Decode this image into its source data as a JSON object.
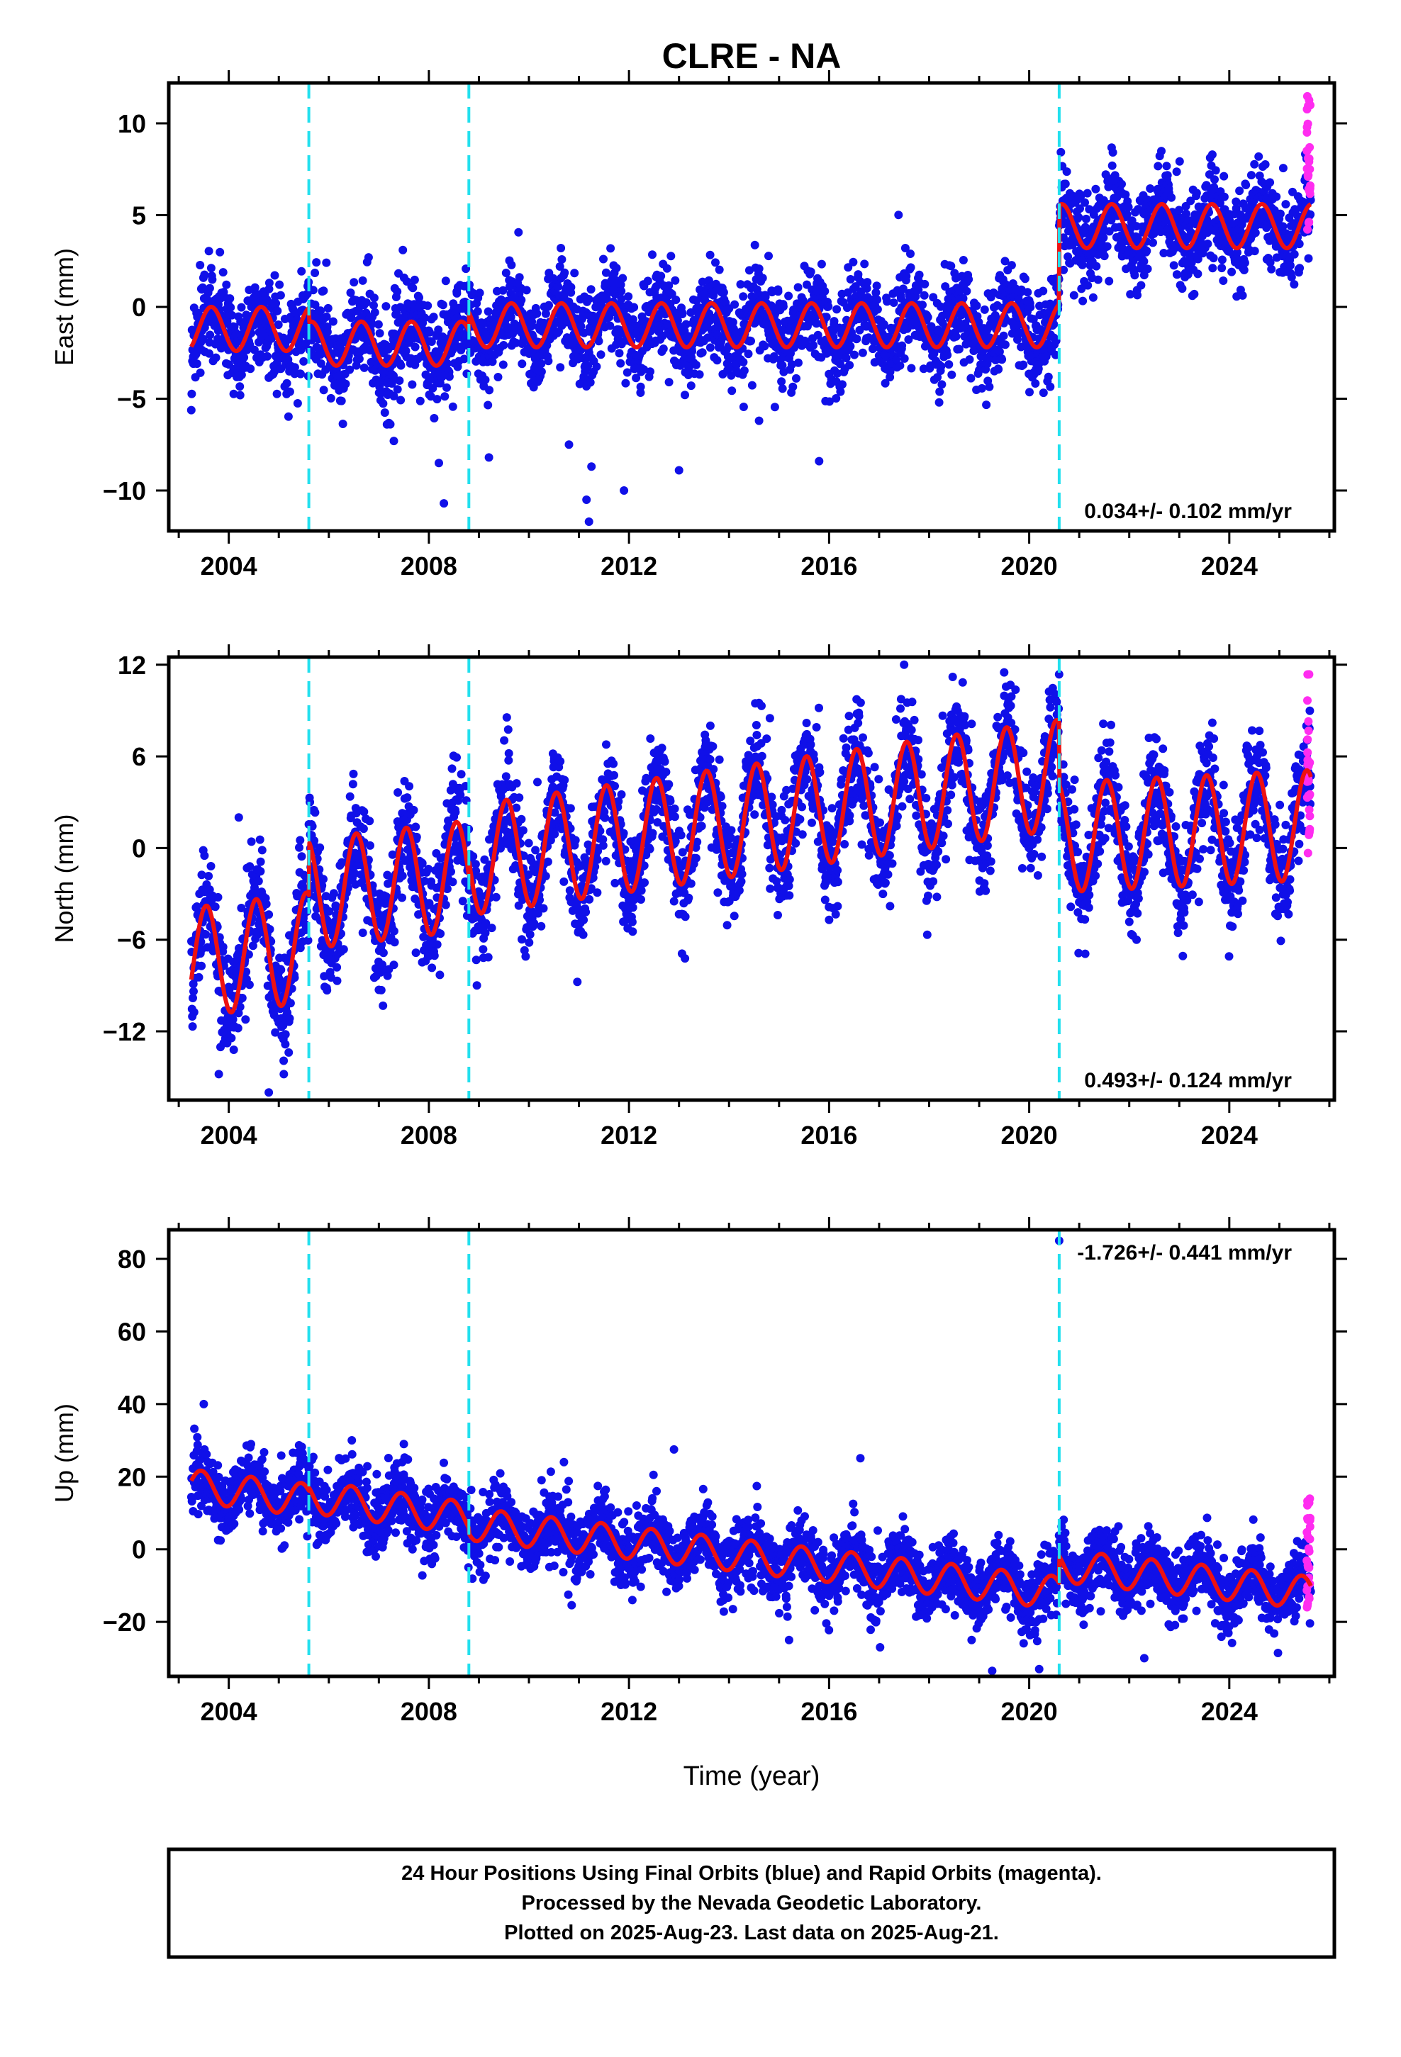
{
  "title": "CLRE - NA",
  "xlabel": "Time (year)",
  "caption": [
    "24 Hour Positions Using Final Orbits (blue) and Rapid Orbits (magenta).",
    "Processed by the Nevada Geodetic Laboratory.",
    "Plotted on 2025-Aug-23. Last data on 2025-Aug-21."
  ],
  "colors": {
    "final": "#1010e8",
    "rapid": "#ff2cf0",
    "model": "#ee1111",
    "breaks": "#22e0ee",
    "axis": "#000000"
  },
  "chart_data": [
    {
      "type": "scatter",
      "name": "east",
      "ylabel": "East (mm)",
      "xlim": [
        2002.8,
        2026.1
      ],
      "ylim": [
        -12.2,
        12.2
      ],
      "xticks": [
        2004,
        2008,
        2012,
        2016,
        2020,
        2024
      ],
      "yticks": [
        -10,
        -5,
        0,
        5,
        10
      ],
      "ytick_labels": [
        "−10",
        "−5",
        "0",
        "5",
        "10"
      ],
      "breaks": [
        2005.6,
        2008.8,
        2020.6
      ],
      "rate": "0.034+/- 0.102 mm/yr",
      "rate_pos": "bottom-right",
      "data_start": 2003.25,
      "data_end": 2025.63,
      "model": {
        "trend": [
          [
            2003.25,
            -1.2
          ],
          [
            2005.6,
            -1.2
          ],
          [
            2005.6,
            -2.0
          ],
          [
            2008.8,
            -2.0
          ],
          [
            2008.8,
            -1.0
          ],
          [
            2020.6,
            -1.0
          ],
          [
            2020.6,
            4.4
          ],
          [
            2025.63,
            4.4
          ]
        ],
        "annual_amplitude": 1.2,
        "phase_peak": 0.65
      },
      "scatter_sigma": 1.25,
      "rapid": {
        "x": [
          2025.55,
          2025.62
        ],
        "y": [
          4.0,
          11.5
        ]
      },
      "outliers": [
        [
          2008.3,
          -10.7
        ],
        [
          2008.2,
          -8.5
        ],
        [
          2011.2,
          -11.7
        ],
        [
          2011.15,
          -10.5
        ],
        [
          2011.25,
          -8.7
        ],
        [
          2011.9,
          -10.0
        ],
        [
          2013.0,
          -8.9
        ],
        [
          2015.8,
          -8.4
        ],
        [
          2009.2,
          -8.2
        ],
        [
          2007.3,
          -7.3
        ],
        [
          2010.8,
          -7.5
        ],
        [
          2018.2,
          -5.2
        ],
        [
          2014.6,
          -6.2
        ]
      ]
    },
    {
      "type": "scatter",
      "name": "north",
      "ylabel": "North (mm)",
      "xlim": [
        2002.8,
        2026.1
      ],
      "ylim": [
        -16.5,
        12.5
      ],
      "xticks": [
        2004,
        2008,
        2012,
        2016,
        2020,
        2024
      ],
      "yticks": [
        -12,
        -6,
        0,
        6,
        12
      ],
      "ytick_labels": [
        "−12",
        "−6",
        "0",
        "6",
        "12"
      ],
      "breaks": [
        2005.6,
        2008.8,
        2020.6
      ],
      "rate": "0.493+/- 0.124 mm/yr",
      "rate_pos": "bottom-right",
      "data_start": 2003.25,
      "data_end": 2025.63,
      "model": {
        "trend": [
          [
            2003.25,
            -7.5
          ],
          [
            2005.6,
            -6.5
          ],
          [
            2005.6,
            -3.0
          ],
          [
            2008.8,
            -1.8
          ],
          [
            2008.8,
            -0.8
          ],
          [
            2020.6,
            4.8
          ],
          [
            2020.6,
            0.7
          ],
          [
            2025.63,
            1.5
          ]
        ],
        "annual_amplitude": 3.6,
        "phase_peak": 0.55
      },
      "scatter_sigma": 1.7,
      "rapid": {
        "x": [
          2025.55,
          2025.62
        ],
        "y": [
          -0.5,
          11.5
        ]
      },
      "outliers": [
        [
          2004.8,
          -16.0
        ],
        [
          2005.1,
          -14.8
        ],
        [
          2003.8,
          -14.8
        ],
        [
          2004.2,
          2.0
        ],
        [
          2017.5,
          12.0
        ],
        [
          2019.5,
          11.5
        ],
        [
          2016.0,
          -4.7
        ]
      ]
    },
    {
      "type": "scatter",
      "name": "up",
      "ylabel": "Up (mm)",
      "xlim": [
        2002.8,
        2026.1
      ],
      "ylim": [
        -35,
        88
      ],
      "xticks": [
        2004,
        2008,
        2012,
        2016,
        2020,
        2024
      ],
      "yticks": [
        -20,
        0,
        20,
        40,
        60,
        80
      ],
      "ytick_labels": [
        "−20",
        "0",
        "20",
        "40",
        "60",
        "80"
      ],
      "breaks": [
        2005.6,
        2008.8,
        2020.6
      ],
      "rate": "-1.726+/- 0.441 mm/yr",
      "rate_pos": "top-right",
      "data_start": 2003.25,
      "data_end": 2025.63,
      "model": {
        "trend": [
          [
            2003.25,
            17.5
          ],
          [
            2005.6,
            13.5
          ],
          [
            2005.6,
            14.5
          ],
          [
            2008.8,
            8.5
          ],
          [
            2008.8,
            7.0
          ],
          [
            2020.6,
            -12.0
          ],
          [
            2020.6,
            -4.5
          ],
          [
            2025.63,
            -12.0
          ]
        ],
        "annual_amplitude": 4.5,
        "phase_peak": 0.45
      },
      "scatter_sigma": 4.6,
      "rapid": {
        "x": [
          2025.55,
          2025.62
        ],
        "y": [
          -18,
          15
        ]
      },
      "outliers": [
        [
          2003.5,
          40
        ],
        [
          2020.6,
          85
        ],
        [
          2022.3,
          -30
        ],
        [
          2012.9,
          27.5
        ],
        [
          2020.2,
          -33
        ],
        [
          2007.5,
          29
        ],
        [
          2010.7,
          24
        ],
        [
          2015.2,
          -25
        ]
      ]
    }
  ]
}
